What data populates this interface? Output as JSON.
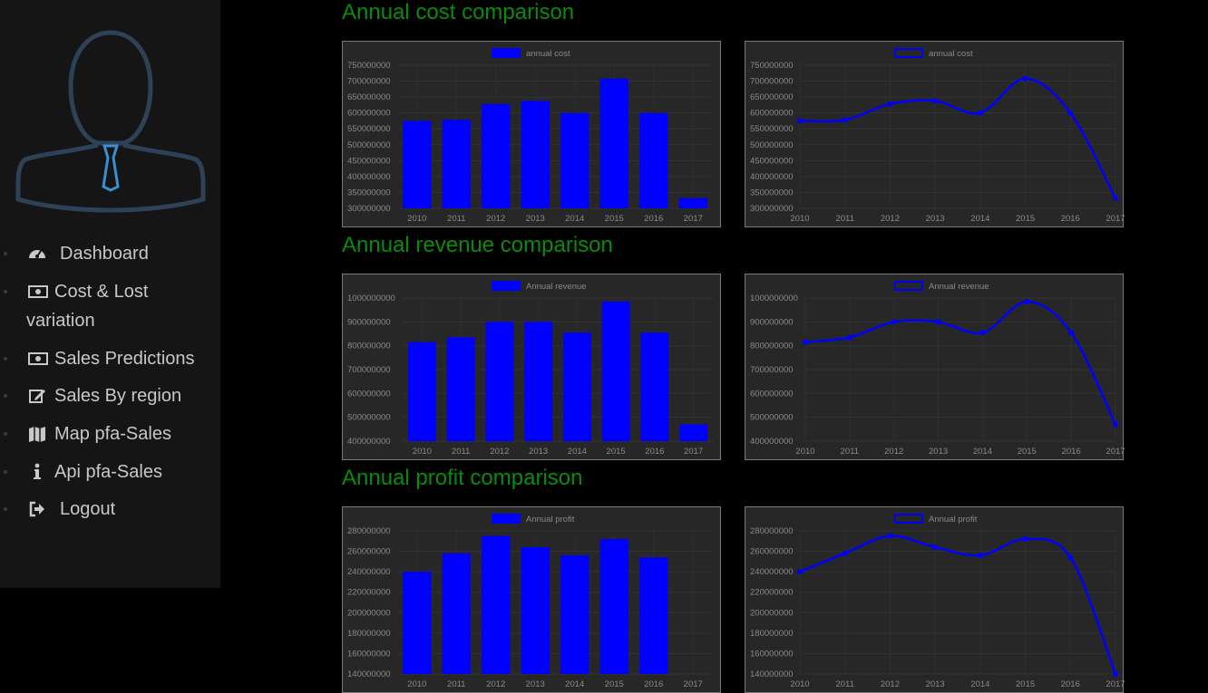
{
  "sidebar": {
    "avatar_icon": "user-tie-avatar-icon",
    "items": [
      {
        "label": "Dashboard",
        "icon": "dashboard-icon"
      },
      {
        "label": "Cost & Lost",
        "label2": "variation",
        "icon": "money-icon"
      },
      {
        "label": "Sales Predictions",
        "icon": "money-icon"
      },
      {
        "label": "Sales By region",
        "icon": "edit-icon"
      },
      {
        "label": "Map pfa-Sales",
        "icon": "map-icon"
      },
      {
        "label": "Api pfa-Sales",
        "icon": "info-icon"
      },
      {
        "label": "Logout",
        "icon": "sign-out-icon"
      }
    ]
  },
  "colors": {
    "accent": "#0a8c0a",
    "series": "#0000ff",
    "chart_bg": "#272727",
    "sidebar_bg": "#151515"
  },
  "sections": [
    {
      "title": "Annual cost comparison"
    },
    {
      "title": "Annual revenue comparison"
    },
    {
      "title": "Annual profit comparison"
    }
  ],
  "chart_data": [
    {
      "type": "bar",
      "section": 0,
      "legend": "annual cost",
      "categories": [
        "2010",
        "2011",
        "2012",
        "2013",
        "2014",
        "2015",
        "2016",
        "2017"
      ],
      "values": [
        575000000,
        578000000,
        628000000,
        638000000,
        600000000,
        708000000,
        600000000,
        332000000
      ],
      "ylim": [
        300000000,
        750000000
      ],
      "yticks": [
        300000000,
        350000000,
        400000000,
        450000000,
        500000000,
        550000000,
        600000000,
        650000000,
        700000000,
        750000000
      ]
    },
    {
      "type": "line",
      "section": 0,
      "legend": "annual cost",
      "categories": [
        "2010",
        "2011",
        "2012",
        "2013",
        "2014",
        "2015",
        "2016",
        "2017"
      ],
      "values": [
        575000000,
        578000000,
        628000000,
        638000000,
        600000000,
        708000000,
        600000000,
        332000000
      ],
      "ylim": [
        300000000,
        750000000
      ],
      "yticks": [
        300000000,
        350000000,
        400000000,
        450000000,
        500000000,
        550000000,
        600000000,
        650000000,
        700000000,
        750000000
      ]
    },
    {
      "type": "bar",
      "section": 1,
      "legend": "Annual revenue",
      "categories": [
        "2010",
        "2011",
        "2012",
        "2013",
        "2014",
        "2015",
        "2016",
        "2017"
      ],
      "values": [
        815000000,
        835000000,
        900000000,
        900000000,
        855000000,
        985000000,
        855000000,
        470000000
      ],
      "ylim": [
        400000000,
        1000000000
      ],
      "yticks": [
        400000000,
        500000000,
        600000000,
        700000000,
        800000000,
        900000000,
        1000000000
      ]
    },
    {
      "type": "line",
      "section": 1,
      "legend": "Annual revenue",
      "categories": [
        "2010",
        "2011",
        "2012",
        "2013",
        "2014",
        "2015",
        "2016",
        "2017"
      ],
      "values": [
        815000000,
        835000000,
        900000000,
        900000000,
        855000000,
        985000000,
        855000000,
        470000000
      ],
      "ylim": [
        400000000,
        1000000000
      ],
      "yticks": [
        400000000,
        500000000,
        600000000,
        700000000,
        800000000,
        900000000,
        1000000000
      ]
    },
    {
      "type": "bar",
      "section": 2,
      "legend": "Annual profit",
      "categories": [
        "2010",
        "2011",
        "2012",
        "2013",
        "2014",
        "2015",
        "2016",
        "2017"
      ],
      "values": [
        240000000,
        258000000,
        275000000,
        264000000,
        256000000,
        272000000,
        254000000,
        140000000
      ],
      "ylim": [
        140000000,
        280000000
      ],
      "yticks": [
        140000000,
        160000000,
        180000000,
        200000000,
        220000000,
        240000000,
        260000000,
        280000000
      ]
    },
    {
      "type": "line",
      "section": 2,
      "legend": "Annual profit",
      "categories": [
        "2010",
        "2011",
        "2012",
        "2013",
        "2014",
        "2015",
        "2016",
        "2017"
      ],
      "values": [
        240000000,
        258000000,
        275000000,
        264000000,
        256000000,
        272000000,
        254000000,
        140000000
      ],
      "ylim": [
        140000000,
        280000000
      ],
      "yticks": [
        140000000,
        160000000,
        180000000,
        200000000,
        220000000,
        240000000,
        260000000,
        280000000
      ]
    }
  ]
}
